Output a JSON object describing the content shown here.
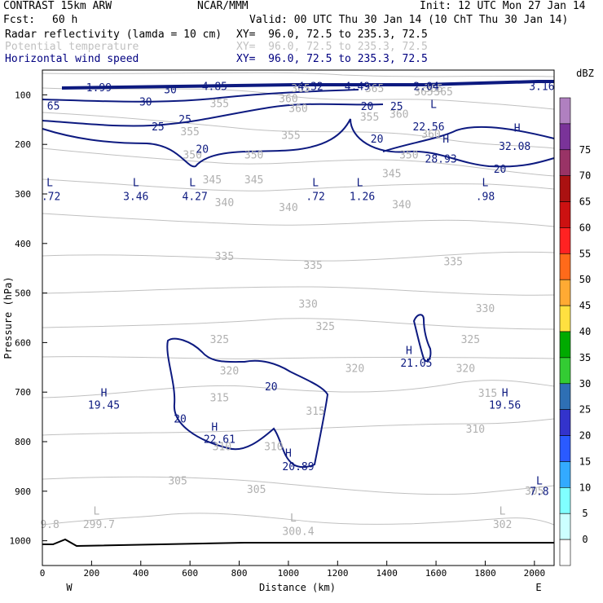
{
  "header": {
    "model": "CONTRAST 15km ARW",
    "org": "NCAR/MMM",
    "init": "Init: 12 UTC Mon 27 Jan 14",
    "fcst_label": "Fcst:",
    "fcst_value": "60 h",
    "valid": "Valid: 00 UTC Thu 30 Jan 14 (10 ChT Thu 30 Jan 14)",
    "fields": [
      {
        "name": "Radar reflectivity (lamda = 10 cm)",
        "xy": "XY=  96.0, 72.5 to 235.3, 72.5",
        "color": "#000000"
      },
      {
        "name": "Potential temperature",
        "xy": "XY=  96.0, 72.5 to 235.3, 72.5",
        "color": "#c0c0c0"
      },
      {
        "name": "Horizontal wind speed",
        "xy": "XY=  96.0, 72.5 to 235.3, 72.5",
        "color": "#000080"
      }
    ]
  },
  "chart_data": {
    "type": "contour",
    "xlabel": "Distance (km)",
    "ylabel": "Pressure (hPa)",
    "xlim": [
      0,
      2080
    ],
    "ylim": [
      1050,
      50
    ],
    "xticks": [
      0,
      200,
      400,
      600,
      800,
      1000,
      1200,
      1400,
      1600,
      1800,
      2000
    ],
    "yticks": [
      100,
      200,
      300,
      400,
      500,
      600,
      700,
      800,
      900,
      1000
    ],
    "west_label": "W",
    "east_label": "E",
    "colorbar": {
      "unit": "dBZ",
      "levels": [
        0,
        5,
        10,
        15,
        20,
        25,
        30,
        35,
        40,
        45,
        50,
        55,
        60,
        65,
        70,
        75
      ],
      "colors": [
        "#ffffff",
        "#ccffff",
        "#80ffff",
        "#33aaff",
        "#2a5aff",
        "#3333cc",
        "#2e6fb4",
        "#33cc33",
        "#00aa00",
        "#ffe040",
        "#ffaa33",
        "#ff6a1a",
        "#ff2222",
        "#cc1111",
        "#aa1111",
        "#993366",
        "#7a3399",
        "#b080c0"
      ]
    },
    "theta_labels": [
      {
        "text": "365",
        "x": 1050,
        "p": 88
      },
      {
        "text": "365",
        "x": 1350,
        "p": 88
      },
      {
        "text": "365",
        "x": 1590,
        "p": 88
      },
      {
        "text": "360",
        "x": 1000,
        "p": 108
      },
      {
        "text": "360",
        "x": 1040,
        "p": 128
      },
      {
        "text": "365",
        "x": 1550,
        "p": 94
      },
      {
        "text": "365",
        "x": 1630,
        "p": 94
      },
      {
        "text": "360",
        "x": 1450,
        "p": 140
      },
      {
        "text": "360",
        "x": 1580,
        "p": 180
      },
      {
        "text": "355",
        "x": 720,
        "p": 118
      },
      {
        "text": "355",
        "x": 1330,
        "p": 145
      },
      {
        "text": "355",
        "x": 600,
        "p": 175
      },
      {
        "text": "355",
        "x": 1010,
        "p": 182
      },
      {
        "text": "350",
        "x": 610,
        "p": 222
      },
      {
        "text": "350",
        "x": 860,
        "p": 222
      },
      {
        "text": "350",
        "x": 1490,
        "p": 222
      },
      {
        "text": "345",
        "x": 690,
        "p": 272
      },
      {
        "text": "345",
        "x": 860,
        "p": 272
      },
      {
        "text": "345",
        "x": 1420,
        "p": 260
      },
      {
        "text": "340",
        "x": 740,
        "p": 318
      },
      {
        "text": "340",
        "x": 1000,
        "p": 328
      },
      {
        "text": "340",
        "x": 1460,
        "p": 322
      },
      {
        "text": "335",
        "x": 740,
        "p": 427
      },
      {
        "text": "335",
        "x": 1100,
        "p": 445
      },
      {
        "text": "335",
        "x": 1670,
        "p": 437
      },
      {
        "text": "330",
        "x": 1080,
        "p": 523
      },
      {
        "text": "330",
        "x": 1800,
        "p": 532
      },
      {
        "text": "325",
        "x": 720,
        "p": 594
      },
      {
        "text": "325",
        "x": 1150,
        "p": 568
      },
      {
        "text": "325",
        "x": 1740,
        "p": 594
      },
      {
        "text": "320",
        "x": 1270,
        "p": 653
      },
      {
        "text": "320",
        "x": 1720,
        "p": 653
      },
      {
        "text": "320",
        "x": 760,
        "p": 658
      },
      {
        "text": "315",
        "x": 720,
        "p": 712
      },
      {
        "text": "315",
        "x": 1110,
        "p": 739
      },
      {
        "text": "315",
        "x": 1810,
        "p": 703
      },
      {
        "text": "310",
        "x": 730,
        "p": 811
      },
      {
        "text": "310",
        "x": 940,
        "p": 811
      },
      {
        "text": "310",
        "x": 1760,
        "p": 775
      },
      {
        "text": "305",
        "x": 550,
        "p": 880
      },
      {
        "text": "305",
        "x": 870,
        "p": 897
      },
      {
        "text": "305",
        "x": 2000,
        "p": 900
      }
    ],
    "wind_labels": [
      {
        "text": "1.99",
        "x": 230,
        "p": 86
      },
      {
        "text": "30",
        "x": 520,
        "p": 90
      },
      {
        "text": "4.85",
        "x": 700,
        "p": 84
      },
      {
        "text": "4.32",
        "x": 1090,
        "p": 84
      },
      {
        "text": "4.49",
        "x": 1280,
        "p": 84
      },
      {
        "text": "2.04",
        "x": 1560,
        "p": 84
      },
      {
        "text": "3.16",
        "x": 2030,
        "p": 84
      },
      {
        "text": "30",
        "x": 420,
        "p": 115
      },
      {
        "text": "25",
        "x": 580,
        "p": 150
      },
      {
        "text": "25",
        "x": 470,
        "p": 165
      },
      {
        "text": "20",
        "x": 650,
        "p": 210
      },
      {
        "text": "20",
        "x": 1320,
        "p": 124
      },
      {
        "text": "25",
        "x": 1440,
        "p": 124
      },
      {
        "text": "20",
        "x": 1360,
        "p": 190
      },
      {
        "text": "20",
        "x": 1860,
        "p": 251
      },
      {
        "text": "20",
        "x": 930,
        "p": 690
      },
      {
        "text": "20",
        "x": 560,
        "p": 755
      },
      {
        "text": "65",
        "x": 45,
        "p": 123
      },
      {
        "text": "L",
        "x": 1590,
        "p": 120
      },
      {
        "text": "22.56",
        "x": 1570,
        "p": 165
      },
      {
        "text": "H",
        "x": 1640,
        "p": 190
      },
      {
        "text": "28.93",
        "x": 1620,
        "p": 230
      },
      {
        "text": "H",
        "x": 1930,
        "p": 168
      },
      {
        "text": "32.08",
        "x": 1920,
        "p": 205
      },
      {
        "text": "L",
        "x": 30,
        "p": 278
      },
      {
        "text": ".72",
        "x": 35,
        "p": 306
      },
      {
        "text": "L",
        "x": 380,
        "p": 278
      },
      {
        "text": "3.46",
        "x": 380,
        "p": 306
      },
      {
        "text": "L",
        "x": 610,
        "p": 278
      },
      {
        "text": "4.27",
        "x": 620,
        "p": 306
      },
      {
        "text": "L",
        "x": 1110,
        "p": 278
      },
      {
        "text": ".72",
        "x": 1110,
        "p": 306
      },
      {
        "text": "L",
        "x": 1290,
        "p": 278
      },
      {
        "text": "1.26",
        "x": 1300,
        "p": 306
      },
      {
        "text": "L",
        "x": 1800,
        "p": 278
      },
      {
        "text": ".98",
        "x": 1800,
        "p": 306
      },
      {
        "text": "H",
        "x": 1490,
        "p": 617
      },
      {
        "text": "21.05",
        "x": 1520,
        "p": 642
      },
      {
        "text": "H",
        "x": 250,
        "p": 702
      },
      {
        "text": "19.45",
        "x": 250,
        "p": 727
      },
      {
        "text": "H",
        "x": 700,
        "p": 771
      },
      {
        "text": "22.61",
        "x": 720,
        "p": 796
      },
      {
        "text": "H",
        "x": 1880,
        "p": 702
      },
      {
        "text": "19.56",
        "x": 1880,
        "p": 727
      },
      {
        "text": "H",
        "x": 1000,
        "p": 824
      },
      {
        "text": "20.89",
        "x": 1040,
        "p": 851
      },
      {
        "text": "L",
        "x": 2020,
        "p": 880
      },
      {
        "text": "7.8",
        "x": 2020,
        "p": 901
      }
    ],
    "theta_minima": [
      {
        "text": "9.8",
        "x": 30,
        "p": 968
      },
      {
        "text": "L",
        "x": 220,
        "p": 941
      },
      {
        "text": "299.7",
        "x": 230,
        "p": 968
      },
      {
        "text": "L",
        "x": 1020,
        "p": 955
      },
      {
        "text": "300.4",
        "x": 1040,
        "p": 982
      },
      {
        "text": "L",
        "x": 1870,
        "p": 941
      },
      {
        "text": "302",
        "x": 1870,
        "p": 968
      }
    ]
  }
}
